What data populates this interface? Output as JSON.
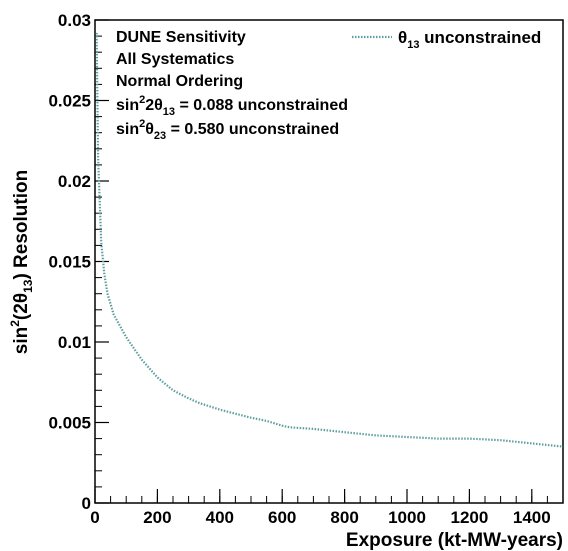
{
  "chart_data": {
    "type": "line",
    "xlabel": "Exposure (kt-MW-years)",
    "ylabel_parts": {
      "pre": "sin",
      "sup": "2",
      "mid": "(2θ",
      "sub": "13",
      "post": ") Resolution"
    },
    "xlim": [
      0,
      1500
    ],
    "ylim": [
      0,
      0.03
    ],
    "x_ticks": [
      0,
      200,
      400,
      600,
      800,
      1000,
      1200,
      1400
    ],
    "y_ticks": [
      0,
      0.005,
      0.01,
      0.015,
      0.02,
      0.025,
      0.03
    ],
    "x_tick_labels": [
      "0",
      "200",
      "400",
      "600",
      "800",
      "1000",
      "1200",
      "1400"
    ],
    "y_tick_labels": [
      "0",
      "0.005",
      "0.01",
      "0.015",
      "0.02",
      "0.025",
      "0.03"
    ],
    "grid": false,
    "legend_position": "top-right",
    "annotations": {
      "line1": "DUNE Sensitivity",
      "line2": "All Systematics",
      "line3": "Normal Ordering",
      "line4": {
        "pre": "sin",
        "sup": "2",
        "mid": "2θ",
        "sub": "13",
        "post": " = 0.088 unconstrained"
      },
      "line5": {
        "pre": "sin",
        "sup": "2",
        "mid": "θ",
        "sub": "23",
        "post": " = 0.580 unconstrained"
      }
    },
    "series": [
      {
        "legend": {
          "sym": "θ",
          "sub": "13",
          "post": " unconstrained"
        },
        "color": "#5f9ea0",
        "x": [
          5,
          10,
          20,
          30,
          40,
          60,
          80,
          100,
          150,
          200,
          250,
          300,
          336,
          400,
          500,
          550,
          600,
          624,
          700,
          800,
          900,
          1000,
          1100,
          1200,
          1300,
          1400,
          1500
        ],
        "y": [
          0.0292,
          0.0215,
          0.0162,
          0.0142,
          0.013,
          0.0117,
          0.011,
          0.0103,
          0.0089,
          0.0078,
          0.007,
          0.0065,
          0.0062,
          0.0058,
          0.0053,
          0.0051,
          0.0048,
          0.0047,
          0.0046,
          0.0044,
          0.0042,
          0.0041,
          0.004,
          0.004,
          0.0039,
          0.0037,
          0.0035
        ]
      }
    ]
  }
}
